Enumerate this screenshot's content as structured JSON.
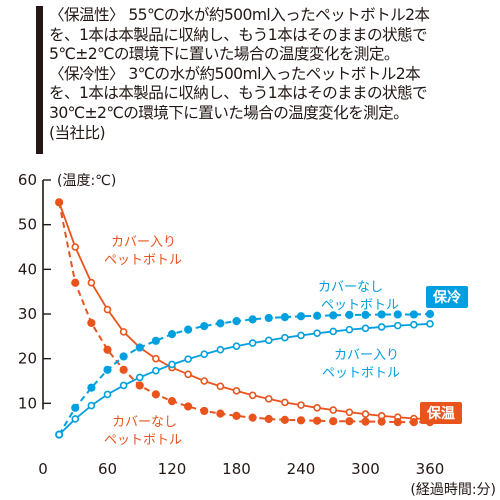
{
  "description": {
    "lines": [
      "〈保温性〉 55℃の水が約500ml入ったペットボトル2本",
      "を、1本は本製品に収納し、もう1本はそのままの状態で",
      "5℃±2℃の環境下に置いた場合の温度変化を測定。",
      "〈保冷性〉 3℃の水が約500ml入ったペットボトル2本",
      "を、1本は本製品に収納し、もう1本はそのままの状態で",
      "30℃±2℃の環境下に置いた場合の温度変化を測定。",
      "(当社比)"
    ]
  },
  "chart_data": {
    "type": "line",
    "ylabel": "(温度:℃)",
    "xlabel": "(経過時間:分)",
    "xlim": [
      0,
      360
    ],
    "ylim": [
      0,
      60
    ],
    "xticks": [
      0,
      60,
      120,
      180,
      240,
      300,
      360
    ],
    "yticks": [
      10,
      20,
      30,
      40,
      50,
      60
    ],
    "x": [
      15,
      30,
      45,
      60,
      75,
      90,
      105,
      120,
      135,
      150,
      165,
      180,
      195,
      210,
      225,
      240,
      255,
      270,
      285,
      300,
      315,
      330,
      345,
      360
    ],
    "series": [
      {
        "group": "保温",
        "name_lines": [
          "カバー入り",
          "ペットボトル"
        ],
        "color": "#e8541c",
        "style": "solid-open",
        "values": [
          55,
          45,
          37,
          31,
          26,
          22.5,
          20,
          18,
          16.5,
          15,
          13.8,
          12.8,
          11.8,
          11,
          10.2,
          9.6,
          9,
          8.5,
          8,
          7.6,
          7.2,
          6.9,
          6.6,
          6.4
        ]
      },
      {
        "group": "保温",
        "name_lines": [
          "カバーなし",
          "ペットボトル"
        ],
        "color": "#e8541c",
        "style": "dashed-filled",
        "values": [
          55,
          37,
          28,
          22,
          17.5,
          14,
          12,
          10.5,
          9.3,
          8.3,
          7.7,
          7.2,
          6.8,
          6.5,
          6.3,
          6.2,
          6.1,
          6,
          6,
          5.9,
          5.9,
          5.8,
          5.8,
          5.8
        ]
      },
      {
        "group": "保冷",
        "name_lines": [
          "カバーなし",
          "ペットボトル"
        ],
        "color": "#00a0e0",
        "style": "dashed-filled",
        "values": [
          3,
          9,
          13.5,
          17.5,
          20.5,
          22.5,
          24,
          25.5,
          26.5,
          27.3,
          27.9,
          28.4,
          28.8,
          29.1,
          29.3,
          29.5,
          29.6,
          29.7,
          29.8,
          29.8,
          29.9,
          29.9,
          29.9,
          30
        ]
      },
      {
        "group": "保冷",
        "name_lines": [
          "カバー入り",
          "ペットボトル"
        ],
        "color": "#00a0e0",
        "style": "solid-open",
        "values": [
          3,
          6.5,
          9.5,
          12,
          14,
          15.8,
          17.3,
          18.7,
          19.9,
          21,
          22,
          22.8,
          23.5,
          24.1,
          24.7,
          25.2,
          25.7,
          26.1,
          26.5,
          26.8,
          27.1,
          27.4,
          27.6,
          27.8
        ]
      }
    ],
    "badges": [
      {
        "label": "保冷",
        "color": "#00a0e0"
      },
      {
        "label": "保温",
        "color": "#e8541c"
      }
    ],
    "grid": false
  }
}
